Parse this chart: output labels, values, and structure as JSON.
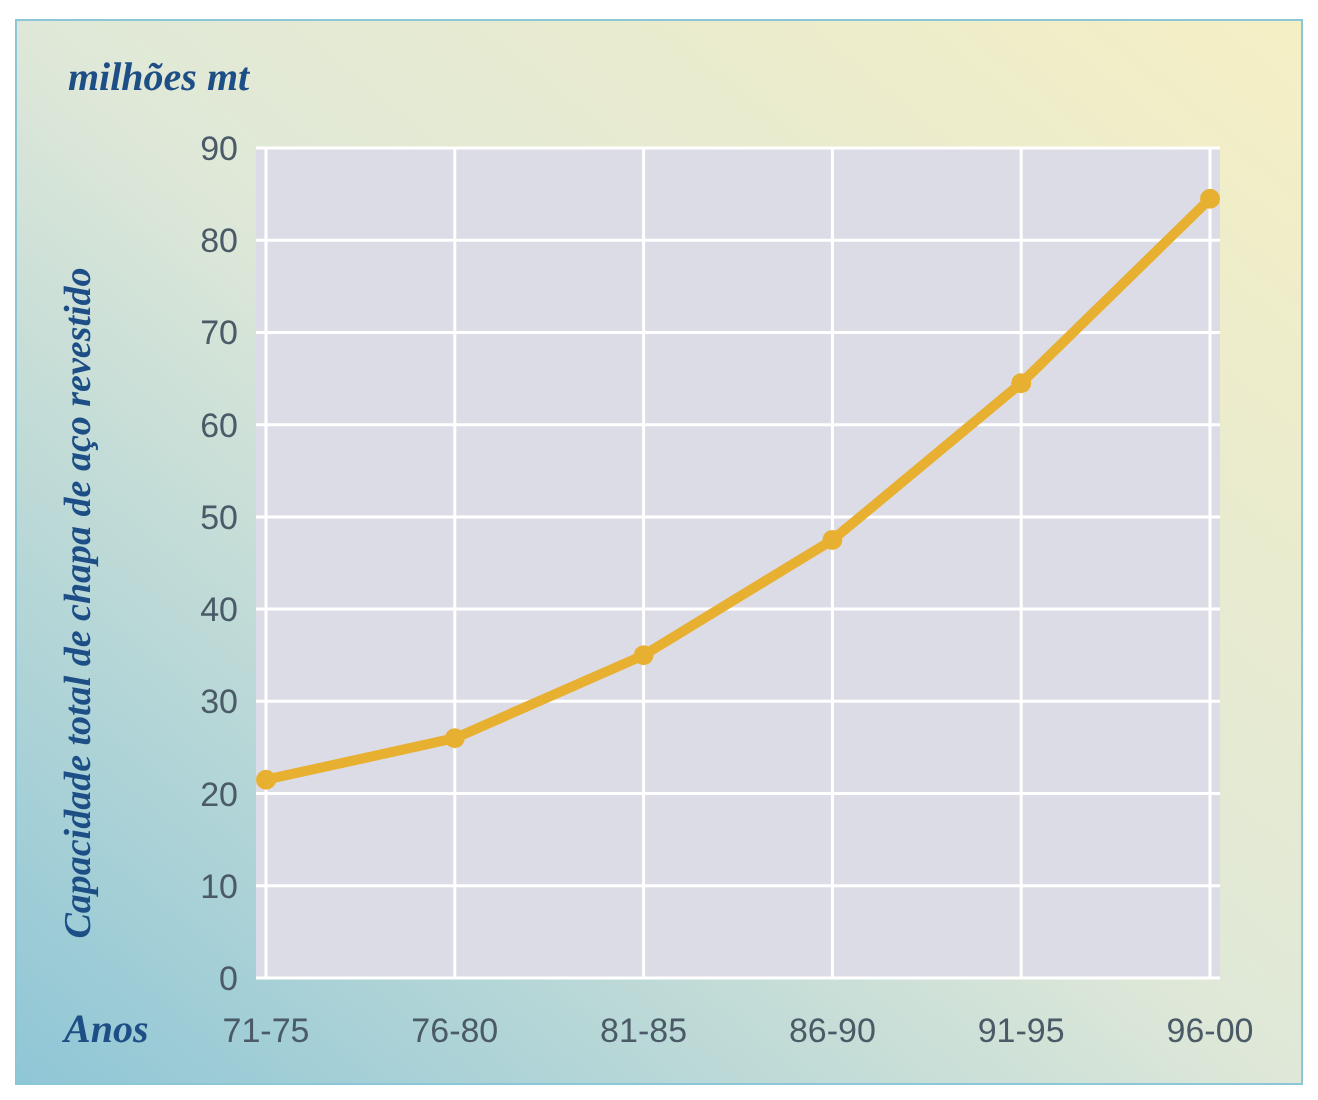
{
  "chart_data": {
    "type": "line",
    "title": "milhões mt",
    "xlabel": "Anos",
    "ylabel": "Capacidade total de chapa de aço revestido",
    "categories": [
      "71-75",
      "76-80",
      "81-85",
      "86-90",
      "91-95",
      "96-00"
    ],
    "series": [
      {
        "color": "#e8b030",
        "values": [
          21.5,
          26,
          35,
          47.5,
          64.5,
          84.5
        ]
      }
    ],
    "ylim": [
      0,
      90
    ],
    "yticks": [
      0,
      10,
      20,
      30,
      40,
      50,
      60,
      70,
      80,
      90
    ],
    "grid": true,
    "marker": "circle",
    "line_style": "solid"
  }
}
